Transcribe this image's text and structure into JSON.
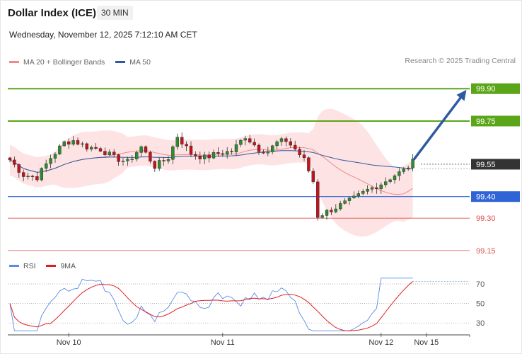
{
  "header": {
    "title": "Dollar Index (ICE)",
    "interval": "30 MIN",
    "timestamp": "Wednesday, November 12, 2025 7:12:10 AM CET",
    "credit": "Research © 2025 Trading Central"
  },
  "legend": {
    "items": [
      {
        "label": "MA 20 + Bollinger Bands",
        "color": "#f08a8a"
      },
      {
        "label": "MA 50",
        "color": "#2e5aa0"
      }
    ]
  },
  "rsi_legend": {
    "items": [
      {
        "label": "RSI",
        "color": "#5b8be8"
      },
      {
        "label": "9MA",
        "color": "#e01e1e"
      }
    ]
  },
  "colors": {
    "bull": "#2e8b2e",
    "bear": "#c0141e",
    "green_level": "#5aa618",
    "blue_level": "#2f64d6",
    "red_level": "#e05050",
    "current_price": "#333333",
    "band_fill": "#fde3e3",
    "arrow": "#2e5aa0"
  },
  "chart_data": {
    "type": "candlestick",
    "price_range": [
      99.13,
      99.95
    ],
    "levels": [
      {
        "label": "99.90",
        "value": 99.9,
        "kind": "resistance",
        "style": "green"
      },
      {
        "label": "99.75",
        "value": 99.75,
        "kind": "resistance",
        "style": "green"
      },
      {
        "label": "99.55",
        "value": 99.55,
        "kind": "current",
        "style": "dark"
      },
      {
        "label": "99.40",
        "value": 99.4,
        "kind": "support",
        "style": "blue"
      },
      {
        "label": "99.30",
        "value": 99.3,
        "kind": "support",
        "style": "red"
      },
      {
        "label": "99.15",
        "value": 99.15,
        "kind": "support",
        "style": "red"
      }
    ],
    "x_ticks": [
      {
        "label": "Nov 10",
        "index": 13
      },
      {
        "label": "Nov 11",
        "index": 47
      },
      {
        "label": "Nov 12",
        "index": 82
      },
      {
        "label": "Nov 15",
        "index": 92
      }
    ],
    "bars": 90,
    "forecast_index": 97,
    "rsi_levels": [
      70,
      50,
      30
    ],
    "rsi_range": [
      20,
      78
    ]
  }
}
